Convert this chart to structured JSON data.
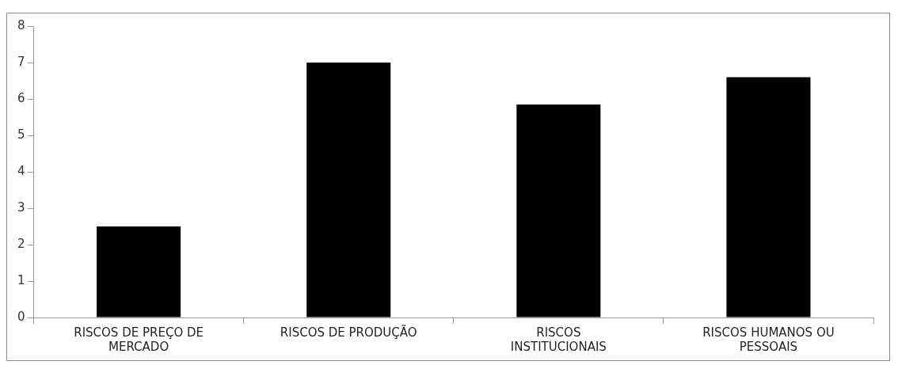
{
  "chart_data": {
    "type": "bar",
    "categories": [
      "RISCOS DE PREÇO DE MERCADO",
      "RISCOS DE PRODUÇÃO",
      "RISCOS INSTITUCIONAIS",
      "RISCOS HUMANOS OU PESSOAIS"
    ],
    "values": [
      2.5,
      7.0,
      5.85,
      6.6
    ],
    "color": "#000000",
    "ylim": [
      0,
      8
    ],
    "yticks": [
      0,
      1,
      2,
      3,
      4,
      5,
      6,
      7,
      8
    ],
    "grid": false,
    "legend": false
  }
}
